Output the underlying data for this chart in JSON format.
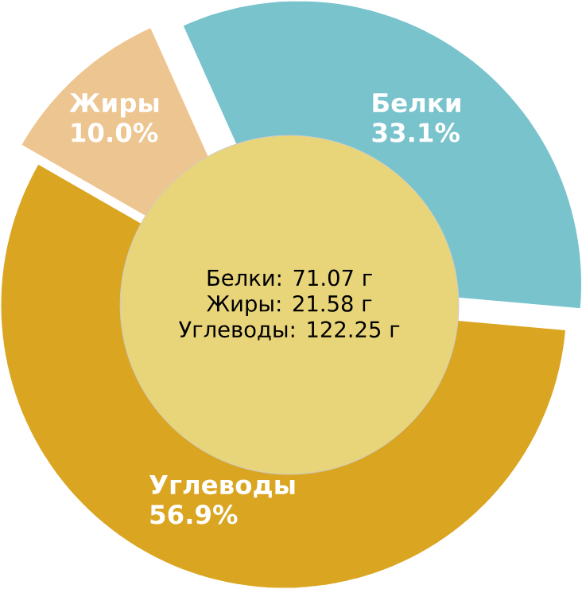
{
  "chart_data": {
    "type": "pie",
    "categories": [
      "Белки",
      "Жиры",
      "Углеводы"
    ],
    "values": [
      33.1,
      10.0,
      56.9
    ],
    "value_labels": [
      "33.1%",
      "10.0%",
      "56.9%"
    ],
    "colors": [
      "#79c3cc",
      "#edc590",
      "#daa520"
    ],
    "annotations": [
      "Белки: 71.07 г",
      "Жиры: 21.58 г",
      "Углеводы: 122.25 г"
    ]
  }
}
